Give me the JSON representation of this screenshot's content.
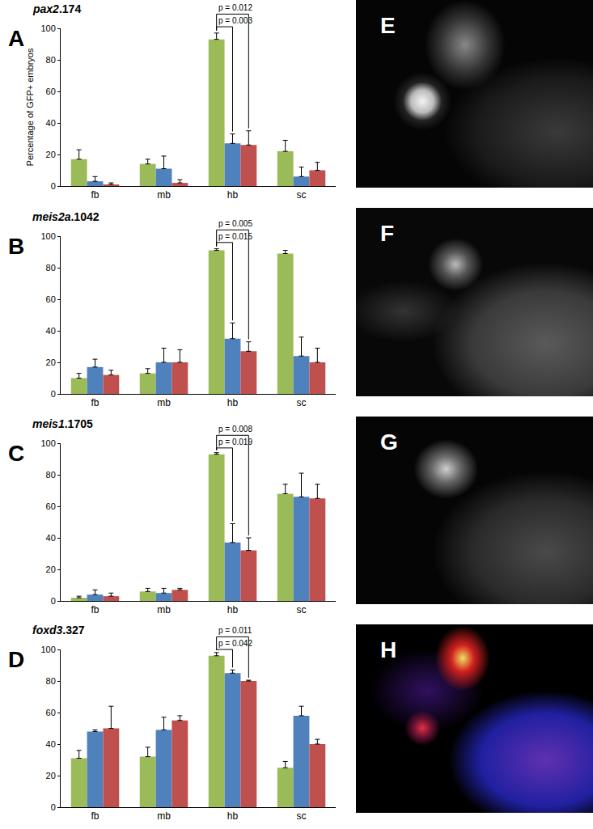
{
  "chart_data": [
    {
      "type": "bar",
      "panel": "A",
      "title": "pax2.174",
      "y_label": "Percentage of GFP+ embryos",
      "categories": [
        "fb",
        "mb",
        "hb",
        "sc"
      ],
      "series": [
        {
          "color": "#9bbb59",
          "values": [
            17,
            14,
            93,
            22
          ],
          "errors": [
            6,
            3,
            4,
            7
          ]
        },
        {
          "color": "#4f81bd",
          "values": [
            3,
            11,
            27,
            6
          ],
          "errors": [
            3,
            8,
            6,
            6
          ]
        },
        {
          "color": "#c0504d",
          "values": [
            1,
            2,
            26,
            10
          ],
          "errors": [
            1,
            2,
            9,
            5
          ]
        }
      ],
      "ylim": [
        0,
        100
      ],
      "yticks": [
        0,
        20,
        40,
        60,
        80,
        100
      ],
      "grid": false,
      "annotations": [
        {
          "text": "p = 0.003",
          "category": "hb",
          "from": 0,
          "to": 1,
          "y": 101
        },
        {
          "text": "p = 0.012",
          "category": "hb",
          "from": 0,
          "to": 2,
          "y": 109
        }
      ]
    },
    {
      "type": "bar",
      "panel": "B",
      "title": "meis2a.1042",
      "categories": [
        "fb",
        "mb",
        "hb",
        "sc"
      ],
      "series": [
        {
          "color": "#9bbb59",
          "values": [
            10,
            13,
            91,
            89
          ],
          "errors": [
            3,
            3,
            1,
            2
          ]
        },
        {
          "color": "#4f81bd",
          "values": [
            17,
            20,
            35,
            24
          ],
          "errors": [
            5,
            9,
            10,
            12
          ]
        },
        {
          "color": "#c0504d",
          "values": [
            12,
            20,
            27,
            20
          ],
          "errors": [
            3,
            8,
            6,
            9
          ]
        }
      ],
      "ylim": [
        0,
        100
      ],
      "yticks": [
        0,
        20,
        40,
        60,
        80,
        100
      ],
      "grid": false,
      "annotations": [
        {
          "text": "p = 0.015",
          "category": "hb",
          "from": 0,
          "to": 1,
          "y": 96
        },
        {
          "text": "p = 0.005",
          "category": "hb",
          "from": 0,
          "to": 2,
          "y": 104
        }
      ]
    },
    {
      "type": "bar",
      "panel": "C",
      "title": "meis1.1705",
      "categories": [
        "fb",
        "mb",
        "hb",
        "sc"
      ],
      "series": [
        {
          "color": "#9bbb59",
          "values": [
            2,
            6,
            93,
            68
          ],
          "errors": [
            1,
            2,
            1,
            6
          ]
        },
        {
          "color": "#4f81bd",
          "values": [
            4,
            5,
            37,
            66
          ],
          "errors": [
            3,
            3,
            12,
            15
          ]
        },
        {
          "color": "#c0504d",
          "values": [
            3,
            7,
            32,
            65
          ],
          "errors": [
            2,
            1,
            8,
            9
          ]
        }
      ],
      "ylim": [
        0,
        100
      ],
      "yticks": [
        0,
        20,
        40,
        60,
        80,
        100
      ],
      "grid": false,
      "annotations": [
        {
          "text": "p = 0.019",
          "category": "hb",
          "from": 0,
          "to": 1,
          "y": 97
        },
        {
          "text": "p = 0.008",
          "category": "hb",
          "from": 0,
          "to": 2,
          "y": 105
        }
      ]
    },
    {
      "type": "bar",
      "panel": "D",
      "title": "foxd3.327",
      "categories": [
        "fb",
        "mb",
        "hb",
        "sc"
      ],
      "series": [
        {
          "color": "#9bbb59",
          "values": [
            31,
            32,
            96,
            25
          ],
          "errors": [
            5,
            6,
            2,
            4
          ]
        },
        {
          "color": "#4f81bd",
          "values": [
            48,
            49,
            85,
            58
          ],
          "errors": [
            1,
            8,
            2,
            6
          ]
        },
        {
          "color": "#c0504d",
          "values": [
            50,
            55,
            80,
            40
          ],
          "errors": [
            14,
            3,
            0.5,
            3
          ]
        }
      ],
      "ylim": [
        0,
        100
      ],
      "yticks": [
        0,
        20,
        40,
        60,
        80,
        100
      ],
      "grid": false,
      "annotations": [
        {
          "text": "p = 0.042",
          "category": "hb",
          "from": 0,
          "to": 1,
          "y": 100
        },
        {
          "text": "p = 0.011",
          "category": "hb",
          "from": 0,
          "to": 2,
          "y": 108
        }
      ]
    }
  ],
  "images": [
    {
      "panel": "E"
    },
    {
      "panel": "F"
    },
    {
      "panel": "G"
    },
    {
      "panel": "H"
    }
  ]
}
